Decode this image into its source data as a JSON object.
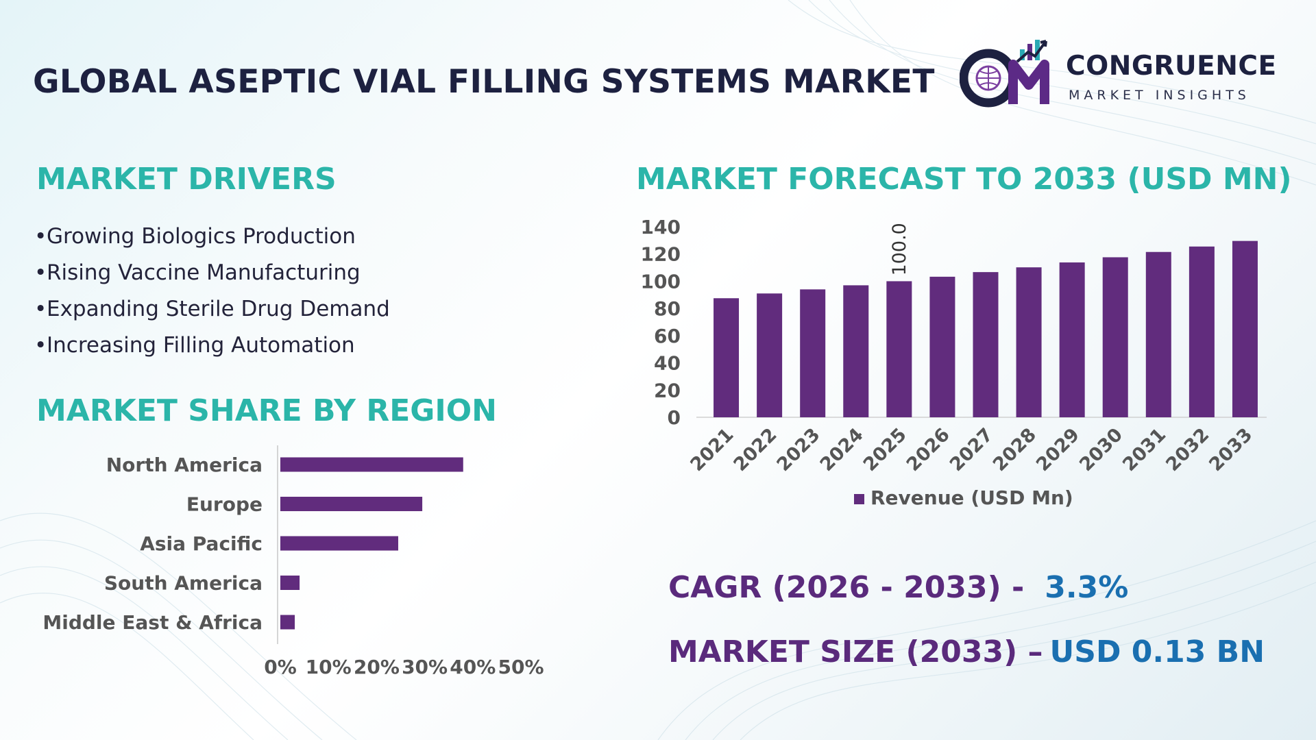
{
  "header": {
    "title": "GLOBAL ASEPTIC VIAL FILLING SYSTEMS MARKET"
  },
  "logo": {
    "name": "CONGRUENCE",
    "subtitle": "MARKET INSIGHTS"
  },
  "drivers": {
    "title": "MARKET DRIVERS",
    "items": [
      "Growing Biologics Production",
      "Rising Vaccine Manufacturing",
      "Expanding Sterile Drug Demand",
      "Increasing Filling Automation"
    ]
  },
  "region": {
    "title": "MARKET SHARE BY REGION"
  },
  "forecast": {
    "title": "MARKET FORECAST TO 2033 (USD MN)"
  },
  "kpis": {
    "cagr_label": "CAGR (2026 - 2033) -",
    "cagr_value": "3.3%",
    "size_label": "MARKET SIZE (2033) –",
    "size_value": "USD 0.13 BN"
  },
  "colors": {
    "bar": "#612c7d",
    "accent_title": "#2bb5a9",
    "kpi_label": "#5a2a7c",
    "kpi_value": "#1a6fb0",
    "dark_text": "#1d2140"
  },
  "chart_data": [
    {
      "type": "bar",
      "orientation": "horizontal",
      "categories": [
        "North America",
        "Europe",
        "Asia Pacific",
        "South America",
        "Middle East & Africa"
      ],
      "values": [
        38,
        29.5,
        24.5,
        4,
        3
      ],
      "xlim": [
        0,
        50
      ],
      "xticks": [
        "0%",
        "10%",
        "20%",
        "30%",
        "40%",
        "50%"
      ],
      "grid": false
    },
    {
      "type": "bar",
      "categories": [
        "2021",
        "2022",
        "2023",
        "2024",
        "2025",
        "2026",
        "2027",
        "2028",
        "2029",
        "2030",
        "2031",
        "2032",
        "2033"
      ],
      "series": [
        {
          "name": "Revenue (USD Mn)",
          "values": [
            87.5,
            91,
            94,
            97,
            100,
            103.3,
            106.7,
            110.2,
            113.8,
            117.6,
            121.5,
            125.5,
            129.6
          ]
        }
      ],
      "data_labels": [
        {
          "category": "2025",
          "text": "100.0"
        }
      ],
      "ylim": [
        0,
        140
      ],
      "yticks": [
        0,
        20,
        40,
        60,
        80,
        100,
        120,
        140
      ],
      "legend": "bottom",
      "grid": false
    }
  ]
}
